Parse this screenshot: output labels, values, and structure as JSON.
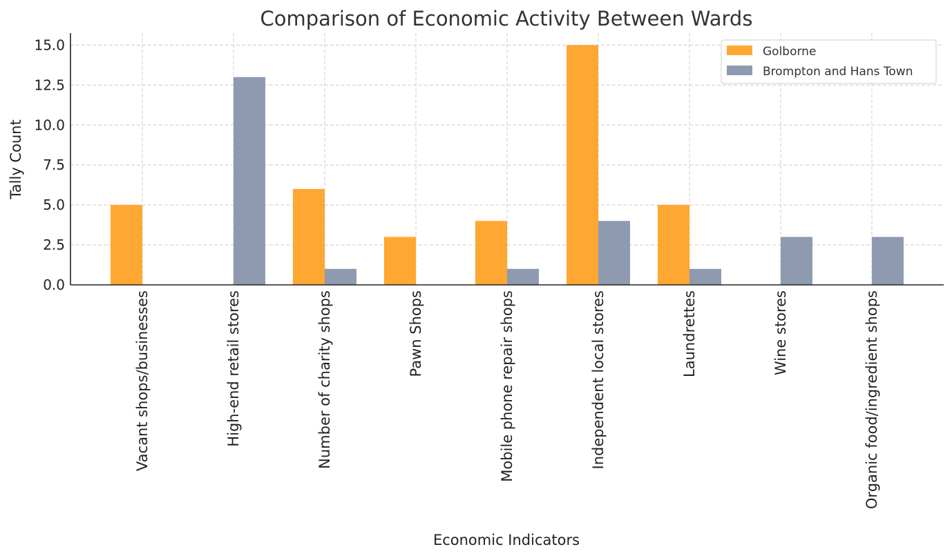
{
  "chart_data": {
    "type": "bar",
    "title": "Comparison of Economic Activity Between Wards",
    "xlabel": "Economic Indicators",
    "ylabel": "Tally Count",
    "categories": [
      "Vacant shops/businesses",
      "High-end retail stores",
      "Number of charity shops",
      "Pawn Shops",
      "Mobile phone repair shops",
      "Independent local stores",
      "Laundrettes",
      "Wine stores",
      "Organic food/ingredient shops"
    ],
    "series": [
      {
        "name": "Golborne",
        "color": "#FFA733",
        "values": [
          5,
          0,
          6,
          3,
          4,
          15,
          5,
          0,
          0
        ]
      },
      {
        "name": "Brompton and Hans Town",
        "color": "#8E9AAF",
        "values": [
          0,
          13,
          1,
          0,
          1,
          4,
          1,
          3,
          3
        ]
      }
    ],
    "ylim": [
      0,
      15.75
    ],
    "yticks": [
      "0.0",
      "2.5",
      "5.0",
      "7.5",
      "10.0",
      "12.5",
      "15.0"
    ],
    "grid": true,
    "legend_position": "top-right"
  }
}
